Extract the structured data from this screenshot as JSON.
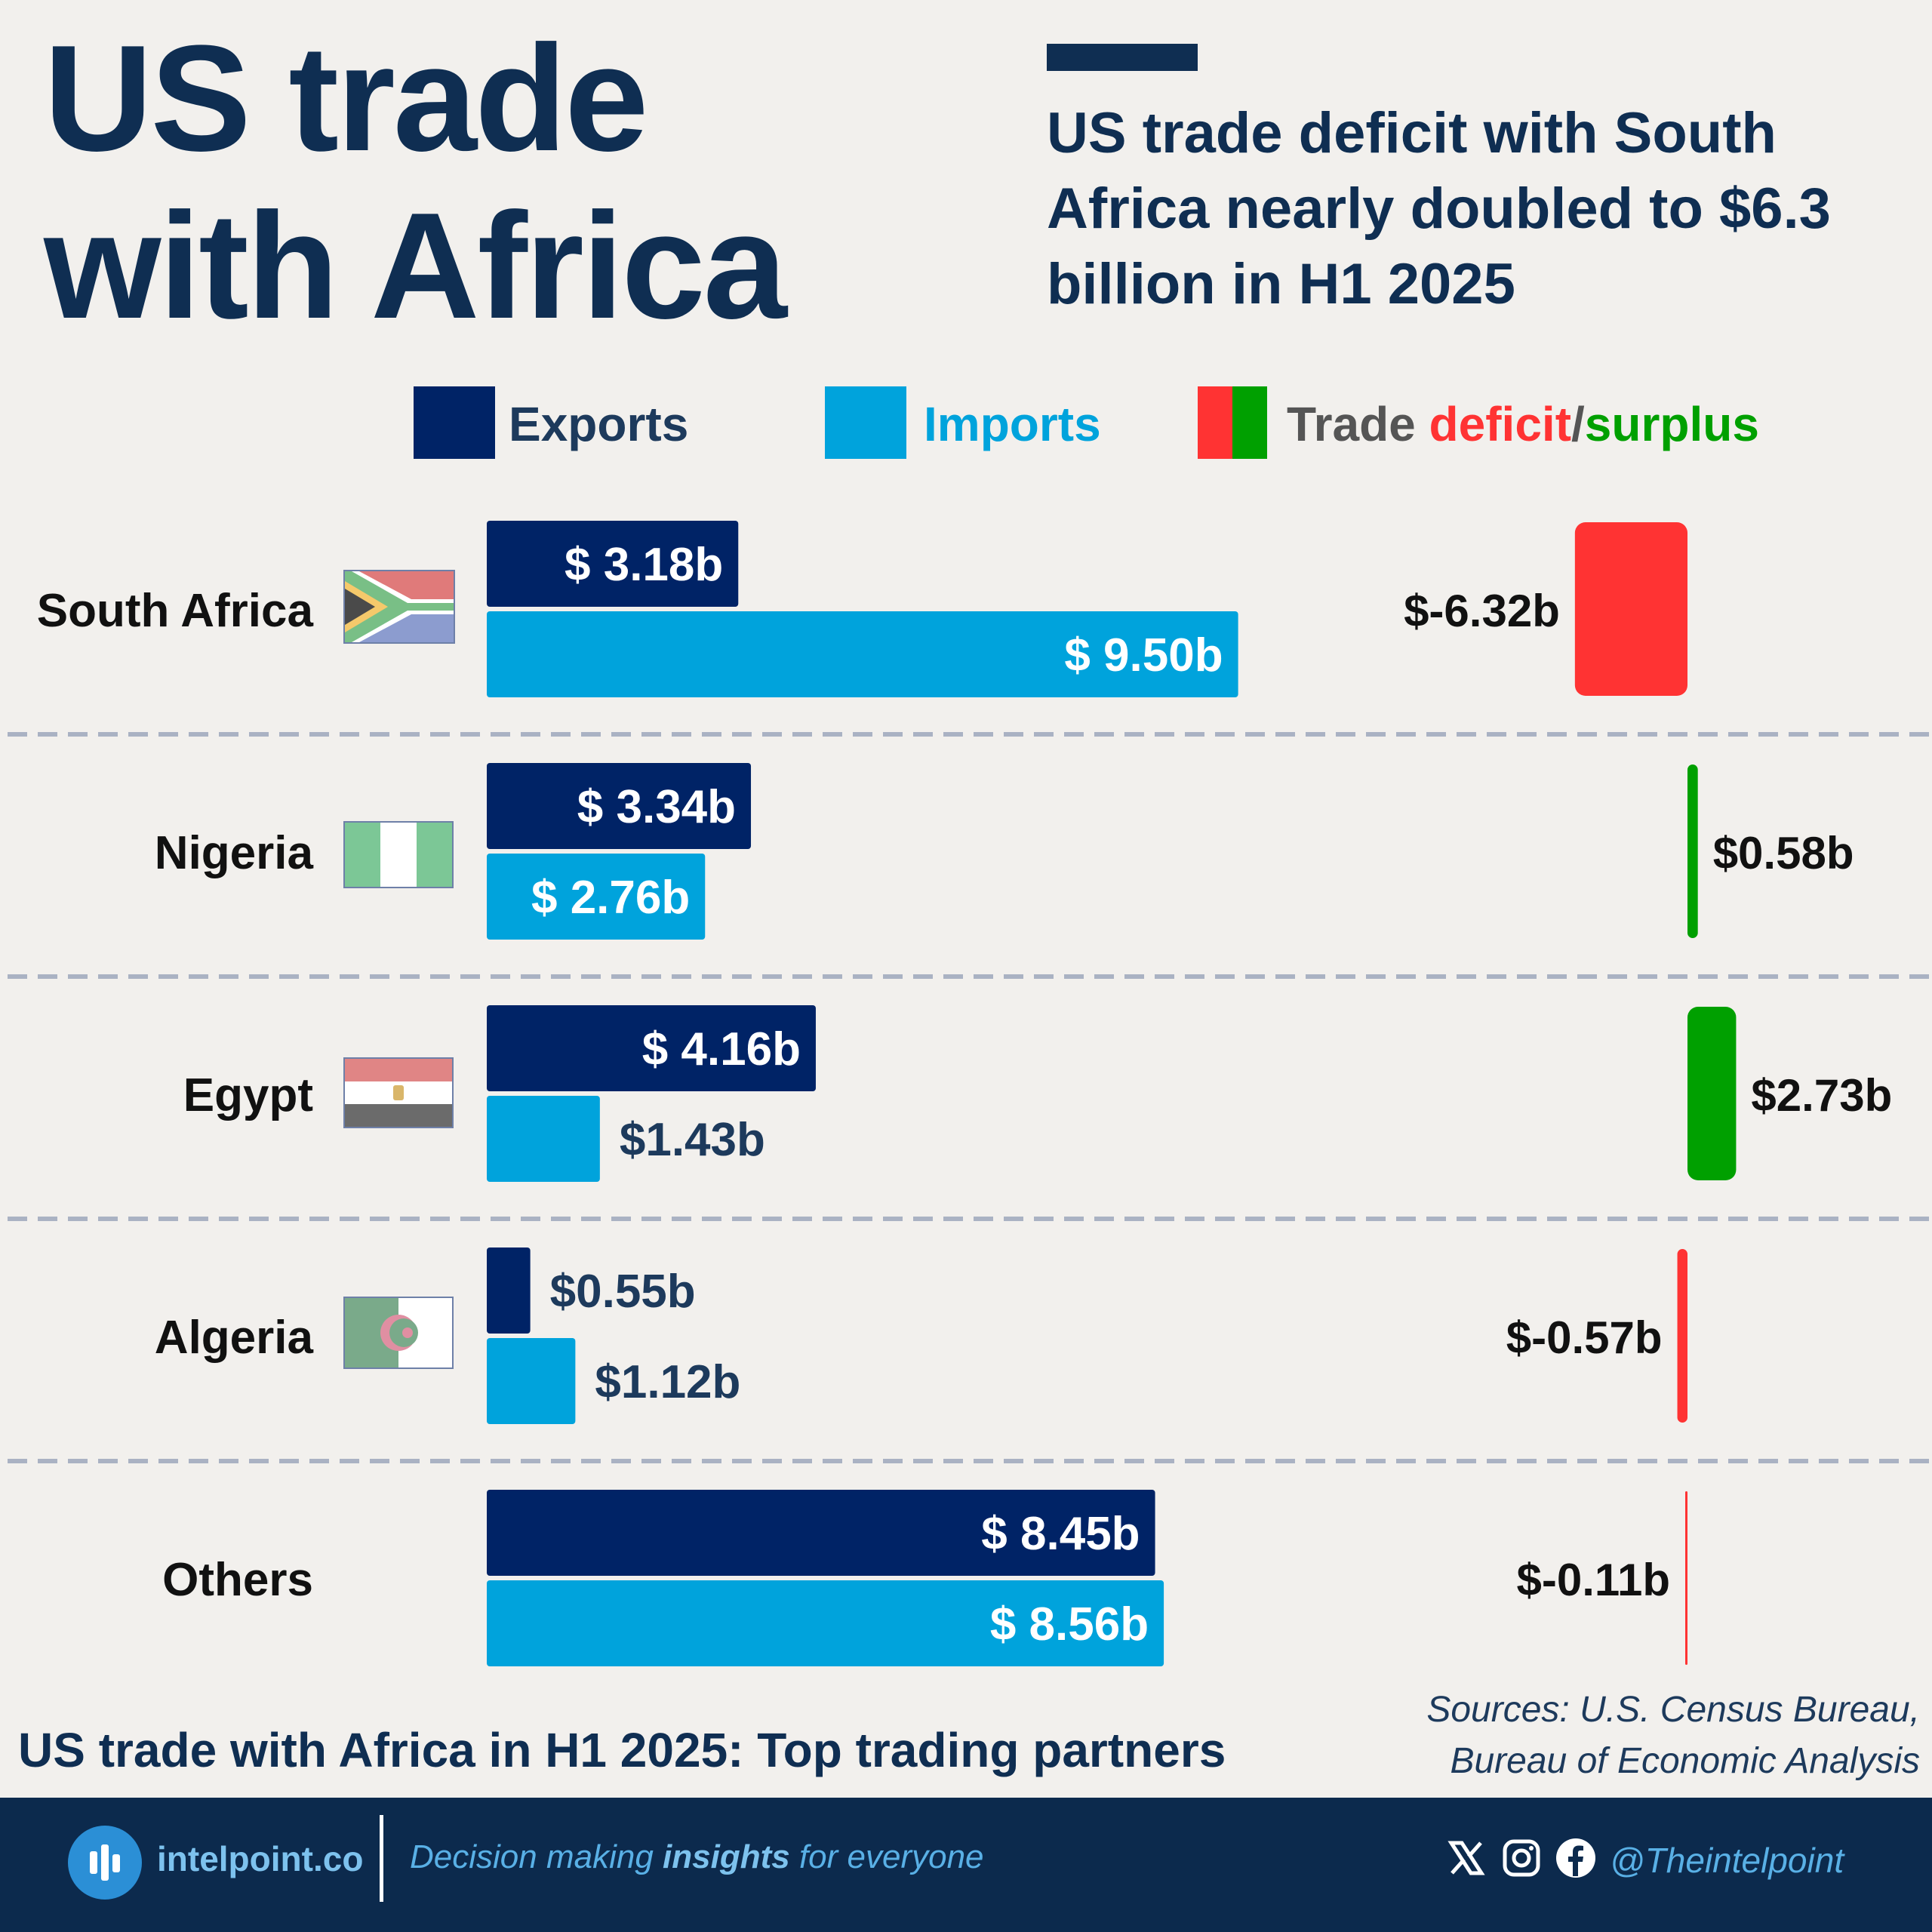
{
  "header": {
    "title_line1": "US trade",
    "title_line2": "with Africa",
    "subheadline": "US trade deficit with South Africa nearly doubled to $6.3 billion in H1 2025"
  },
  "legend": {
    "exports": "Exports",
    "imports": "Imports",
    "trade_prefix": "Trade ",
    "deficit": "deficit",
    "slash": "/",
    "surplus": "surplus"
  },
  "colors": {
    "exports": "#002366",
    "imports": "#00a3dc",
    "deficit": "#ff3333",
    "surplus": "#00a000",
    "title": "#0f2e52"
  },
  "chart_data": {
    "type": "bar",
    "orientation": "horizontal",
    "categories": [
      "South Africa",
      "Nigeria",
      "Egypt",
      "Algeria",
      "Others"
    ],
    "flags": [
      "south-africa-flag-icon",
      "nigeria-flag-icon",
      "egypt-flag-icon",
      "algeria-flag-icon",
      ""
    ],
    "series": [
      {
        "name": "Exports",
        "values": [
          3.18,
          3.34,
          4.16,
          0.55,
          8.45
        ],
        "labels": [
          "$ 3.18b",
          "$ 3.34b",
          "$ 4.16b",
          "$0.55b",
          "$ 8.45b"
        ]
      },
      {
        "name": "Imports",
        "values": [
          9.5,
          2.76,
          1.43,
          1.12,
          8.56
        ],
        "labels": [
          "$ 9.50b",
          "$ 2.76b",
          "$1.43b",
          "$1.12b",
          "$ 8.56b"
        ]
      },
      {
        "name": "Trade deficit/surplus",
        "values": [
          -6.32,
          0.58,
          2.73,
          -0.57,
          -0.11
        ],
        "labels": [
          "$-6.32b",
          "$0.58b",
          "$2.73b",
          "$-0.57b",
          "$-0.11b"
        ]
      }
    ]
  },
  "caption": "US trade with Africa in H1 2025: Top trading partners",
  "sources": {
    "line1": "Sources: U.S. Census Bureau,",
    "line2": "Bureau of Economic Analysis"
  },
  "footer": {
    "site": "intelpoint.co",
    "tagline_pre": "Decision making ",
    "tagline_bold": "insights",
    "tagline_post": " for everyone",
    "handle": "@Theintelpoint",
    "icons": [
      "x-icon",
      "instagram-icon",
      "facebook-icon"
    ]
  }
}
